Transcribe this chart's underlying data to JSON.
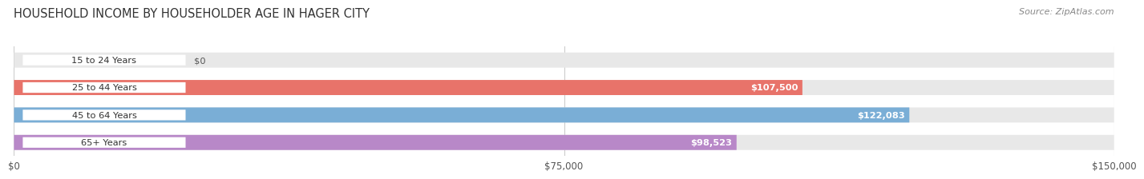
{
  "title": "HOUSEHOLD INCOME BY HOUSEHOLDER AGE IN HAGER CITY",
  "source": "Source: ZipAtlas.com",
  "categories": [
    "15 to 24 Years",
    "25 to 44 Years",
    "45 to 64 Years",
    "65+ Years"
  ],
  "values": [
    0,
    107500,
    122083,
    98523
  ],
  "bar_colors": [
    "#f5c897",
    "#e8736a",
    "#7aaed6",
    "#b888c8"
  ],
  "bar_bg_color": "#e8e8e8",
  "value_labels": [
    "$0",
    "$107,500",
    "$122,083",
    "$98,523"
  ],
  "x_ticks": [
    0,
    75000,
    150000
  ],
  "x_tick_labels": [
    "$0",
    "$75,000",
    "$150,000"
  ],
  "xlim": [
    0,
    150000
  ],
  "background_color": "#ffffff",
  "title_fontsize": 10.5,
  "bar_height": 0.55,
  "figsize": [
    14.06,
    2.33
  ]
}
